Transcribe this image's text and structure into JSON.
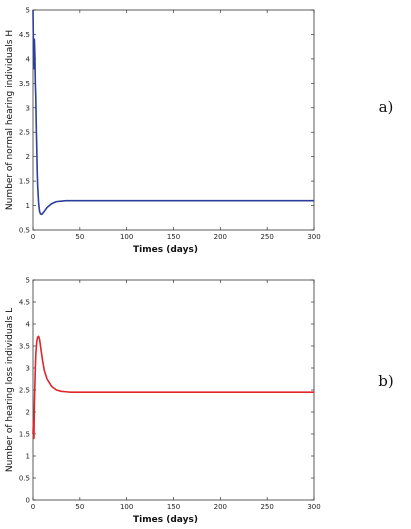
{
  "chart_data": [
    {
      "type": "line",
      "panel_label": "a)",
      "xlabel": "Times (days)",
      "ylabel": "Number of normal hearing individuals H",
      "xlim": [
        0,
        300
      ],
      "ylim": [
        0.5,
        5
      ],
      "xticks": [
        0,
        50,
        100,
        150,
        200,
        250,
        300
      ],
      "yticks": [
        0.5,
        1,
        1.5,
        2,
        2.5,
        3,
        3.5,
        4,
        4.5,
        5
      ],
      "grid": false,
      "color": "#2d3f9a",
      "series": [
        {
          "x": [
            0,
            0.5,
            1,
            1.5,
            2,
            2.5,
            3,
            3.5,
            4,
            4.5,
            5,
            6,
            7,
            8,
            9,
            10,
            12,
            15,
            20,
            25,
            30,
            35,
            40,
            50,
            60,
            80,
            100,
            150,
            200,
            250,
            300
          ],
          "y": [
            5.0,
            4.2,
            3.8,
            4.4,
            4.1,
            3.5,
            3.2,
            2.6,
            2.2,
            1.7,
            1.4,
            1.05,
            0.88,
            0.83,
            0.82,
            0.83,
            0.88,
            0.96,
            1.04,
            1.08,
            1.09,
            1.1,
            1.1,
            1.1,
            1.1,
            1.1,
            1.1,
            1.1,
            1.1,
            1.1,
            1.1
          ]
        }
      ]
    },
    {
      "type": "line",
      "panel_label": "b)",
      "xlabel": "Times (days)",
      "ylabel": "Number of hearing loss individuals L",
      "xlim": [
        0,
        300
      ],
      "ylim": [
        0,
        5
      ],
      "xticks": [
        0,
        50,
        100,
        150,
        200,
        250,
        300
      ],
      "yticks": [
        0,
        0.5,
        1,
        1.5,
        2,
        2.5,
        3,
        3.5,
        4,
        4.5,
        5
      ],
      "grid": false,
      "color": "#e0262a",
      "series": [
        {
          "x": [
            0,
            0.5,
            1,
            1.5,
            2,
            2.5,
            3,
            4,
            5,
            6,
            7,
            8,
            10,
            12,
            15,
            20,
            25,
            30,
            35,
            40,
            50,
            60,
            80,
            100,
            150,
            200,
            250,
            300
          ],
          "y": [
            1.5,
            1.8,
            1.4,
            2.2,
            2.6,
            3.0,
            3.3,
            3.6,
            3.7,
            3.72,
            3.65,
            3.5,
            3.2,
            2.95,
            2.75,
            2.58,
            2.5,
            2.47,
            2.46,
            2.45,
            2.45,
            2.45,
            2.45,
            2.45,
            2.45,
            2.45,
            2.45,
            2.45
          ]
        }
      ]
    }
  ]
}
